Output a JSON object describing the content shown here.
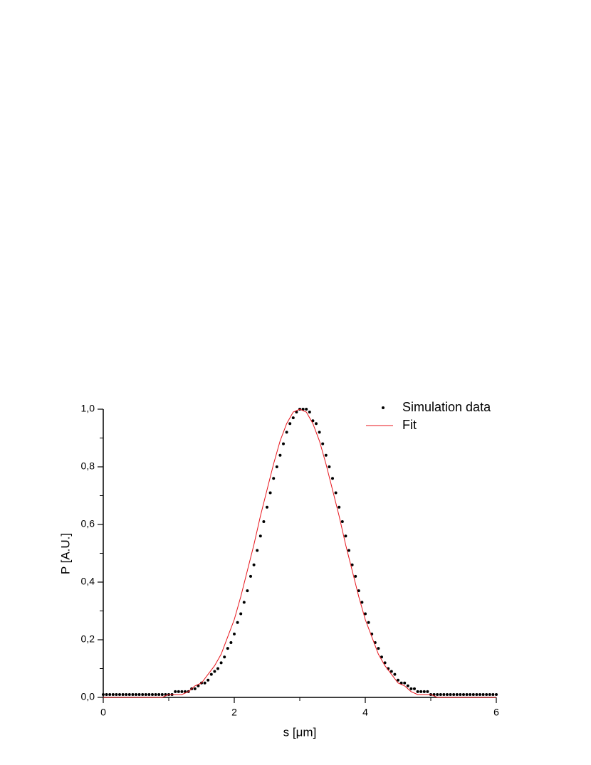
{
  "chart_data": {
    "type": "scatter",
    "xlabel": "s [μm]",
    "ylabel": "P [A.U.]",
    "xlim": [
      0,
      6
    ],
    "ylim": [
      0,
      1
    ],
    "xticks": [
      0,
      2,
      4,
      6
    ],
    "yticks": [
      {
        "value": 0,
        "label": "0,0"
      },
      {
        "value": 0.2,
        "label": "0,2"
      },
      {
        "value": 0.4,
        "label": "0,4"
      },
      {
        "value": 0.6,
        "label": "0,6"
      },
      {
        "value": 0.8,
        "label": "0,8"
      },
      {
        "value": 1,
        "label": "1,0"
      }
    ],
    "legend": "upper right",
    "series": [
      {
        "name": "Simulation data",
        "color": "#000000",
        "style": "dots",
        "x": [
          0,
          0.05,
          0.1,
          0.15,
          0.2,
          0.25,
          0.3,
          0.35,
          0.4,
          0.45,
          0.5,
          0.55,
          0.6,
          0.65,
          0.7,
          0.75,
          0.8,
          0.85,
          0.9,
          0.95,
          1,
          1.05,
          1.1,
          1.15,
          1.2,
          1.25,
          1.3,
          1.35,
          1.4,
          1.45,
          1.5,
          1.55,
          1.6,
          1.65,
          1.7,
          1.75,
          1.8,
          1.85,
          1.9,
          1.95,
          2,
          2.05,
          2.1,
          2.15,
          2.2,
          2.25,
          2.3,
          2.35,
          2.4,
          2.45,
          2.5,
          2.55,
          2.6,
          2.65,
          2.7,
          2.75,
          2.8,
          2.85,
          2.9,
          2.95,
          3,
          3.05,
          3.1,
          3.15,
          3.2,
          3.25,
          3.3,
          3.35,
          3.4,
          3.45,
          3.5,
          3.55,
          3.6,
          3.65,
          3.7,
          3.75,
          3.8,
          3.85,
          3.9,
          3.95,
          4,
          4.05,
          4.1,
          4.15,
          4.2,
          4.25,
          4.3,
          4.35,
          4.4,
          4.45,
          4.5,
          4.55,
          4.6,
          4.65,
          4.7,
          4.75,
          4.8,
          4.85,
          4.9,
          4.95,
          5,
          5.05,
          5.1,
          5.15,
          5.2,
          5.25,
          5.3,
          5.35,
          5.4,
          5.45,
          5.5,
          5.55,
          5.6,
          5.65,
          5.7,
          5.75,
          5.8,
          5.85,
          5.9,
          5.95,
          6
        ],
        "values": [
          0.01,
          0.01,
          0.01,
          0.01,
          0.01,
          0.01,
          0.01,
          0.01,
          0.01,
          0.01,
          0.01,
          0.01,
          0.01,
          0.01,
          0.01,
          0.01,
          0.01,
          0.01,
          0.01,
          0.01,
          0.01,
          0.01,
          0.02,
          0.02,
          0.02,
          0.02,
          0.02,
          0.03,
          0.03,
          0.04,
          0.05,
          0.05,
          0.06,
          0.08,
          0.09,
          0.1,
          0.12,
          0.14,
          0.17,
          0.19,
          0.22,
          0.26,
          0.29,
          0.33,
          0.37,
          0.42,
          0.46,
          0.51,
          0.56,
          0.61,
          0.66,
          0.71,
          0.76,
          0.8,
          0.84,
          0.88,
          0.92,
          0.95,
          0.97,
          0.99,
          1.0,
          1.0,
          1.0,
          0.99,
          0.96,
          0.95,
          0.92,
          0.88,
          0.84,
          0.8,
          0.76,
          0.71,
          0.66,
          0.61,
          0.56,
          0.51,
          0.46,
          0.42,
          0.37,
          0.33,
          0.29,
          0.26,
          0.22,
          0.19,
          0.17,
          0.14,
          0.12,
          0.1,
          0.09,
          0.08,
          0.06,
          0.05,
          0.05,
          0.04,
          0.03,
          0.03,
          0.02,
          0.02,
          0.02,
          0.02,
          0.01,
          0.01,
          0.01,
          0.01,
          0.01,
          0.01,
          0.01,
          0.01,
          0.01,
          0.01,
          0.01,
          0.01,
          0.01,
          0.01,
          0.01,
          0.01,
          0.01,
          0.01,
          0.01,
          0.01,
          0.01
        ]
      },
      {
        "name": "Fit",
        "color": "#e8141b",
        "style": "line",
        "x": [
          0,
          0.1,
          0.2,
          0.3,
          0.4,
          0.5,
          0.6,
          0.7,
          0.8,
          0.9,
          1,
          1.1,
          1.2,
          1.3,
          1.4,
          1.5,
          1.6,
          1.7,
          1.8,
          1.9,
          2,
          2.1,
          2.2,
          2.3,
          2.4,
          2.5,
          2.6,
          2.7,
          2.8,
          2.9,
          3,
          3.1,
          3.2,
          3.3,
          3.4,
          3.5,
          3.6,
          3.7,
          3.8,
          3.9,
          4,
          4.1,
          4.2,
          4.3,
          4.4,
          4.5,
          4.6,
          4.7,
          4.8,
          4.9,
          5,
          5.1,
          5.2,
          5.3,
          5.4,
          5.5,
          5.6,
          5.7,
          5.8,
          5.9,
          6
        ],
        "values": [
          0,
          0,
          0,
          0,
          0,
          0,
          0,
          0,
          0,
          0,
          0.01,
          0.01,
          0.01,
          0.02,
          0.04,
          0.05,
          0.08,
          0.11,
          0.15,
          0.21,
          0.27,
          0.35,
          0.44,
          0.53,
          0.63,
          0.72,
          0.81,
          0.89,
          0.95,
          0.99,
          1,
          0.99,
          0.95,
          0.89,
          0.81,
          0.72,
          0.63,
          0.53,
          0.44,
          0.35,
          0.27,
          0.21,
          0.15,
          0.11,
          0.08,
          0.05,
          0.04,
          0.02,
          0.01,
          0.01,
          0.01,
          0,
          0,
          0,
          0,
          0,
          0,
          0,
          0,
          0,
          0
        ]
      }
    ]
  }
}
